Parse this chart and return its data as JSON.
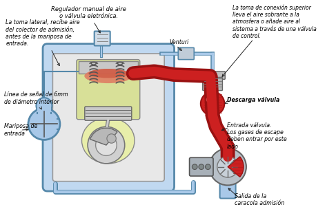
{
  "labels": {
    "regulador": "Regulador manual de aire\no válvula eletrónica.",
    "toma_lateral": "La toma lateral, recibe aire\ndel colector de admisión,\nantes de la mariposa de\nentrada.",
    "venturi": "Venturi",
    "toma_conexion": "La toma de conexión superior\nlleva el aire sobrante a la\natmosfera o añade aire al\nsistema a través de una válvula\nde control.",
    "linea_senal": "Línea de señal de 6mm\nde diámetro interior",
    "mariposa": "Mariposa de\nentrada",
    "descarga": "Descarga válvula",
    "entrada": "Entrada válvula.\nLos gases de escape\ndeben entrar por este\nlado",
    "salida": "Salida de la\ncaracola admisión"
  },
  "colors": {
    "light_blue": "#a8c8e8",
    "blue_line": "#5588aa",
    "blue_fill": "#c0d8f0",
    "red_dark": "#991111",
    "red_mid": "#cc2020",
    "red_light": "#ee4444",
    "yellow_green": "#d8e098",
    "yellow_green2": "#e8eeaa",
    "dark_gray": "#444444",
    "mid_gray": "#888888",
    "light_gray": "#cccccc",
    "silver": "#b8b8b8",
    "white": "#f8f8f8",
    "engine_bg": "#e0e0e0",
    "spring_color": "#555555"
  }
}
